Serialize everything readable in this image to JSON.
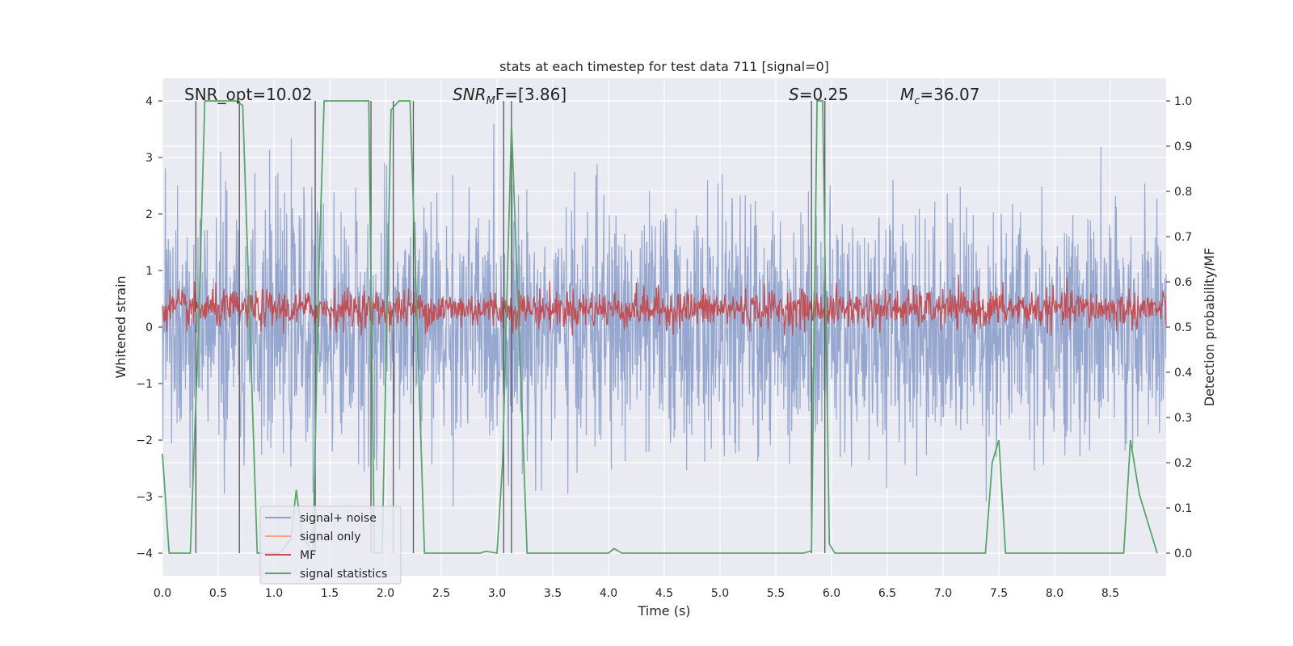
{
  "chart_data": {
    "type": "line",
    "title": "stats at each timestep for test data 711 [signal=0]",
    "xlabel": "Time (s)",
    "ylabel_left": "Whitened strain",
    "ylabel_right": "Detection probability/MF",
    "xlim": [
      0.0,
      9.0
    ],
    "ylim_left": [
      -4.4,
      4.4
    ],
    "ylim_right": [
      -0.05,
      1.05
    ],
    "xticks": [
      "0.0",
      "0.5",
      "1.0",
      "1.5",
      "2.0",
      "2.5",
      "3.0",
      "3.5",
      "4.0",
      "4.5",
      "5.0",
      "5.5",
      "6.0",
      "6.5",
      "7.0",
      "7.5",
      "8.0",
      "8.5"
    ],
    "yticks_left": [
      "4",
      "3",
      "2",
      "1",
      "0",
      "−1",
      "−2",
      "−3",
      "−4"
    ],
    "yticks_right": [
      "1.0",
      "0.9",
      "0.8",
      "0.7",
      "0.6",
      "0.5",
      "0.4",
      "0.3",
      "0.2",
      "0.1",
      "0.0"
    ],
    "annotations": {
      "snr_opt": "SNR_opt=10.02",
      "snr_mf_base": "SNR",
      "snr_mf_sub": "M",
      "snr_mf_tail": "F=[3.86]",
      "s_label": "S",
      "s_value": "=0.25",
      "mc_base": "M",
      "mc_sub": "c",
      "mc_value": "=36.07"
    },
    "legend": [
      {
        "label": "signal+ noise",
        "color": "#8da0cb"
      },
      {
        "label": "signal only",
        "color": "#f4a582"
      },
      {
        "label": "MF",
        "color": "#c44e52"
      },
      {
        "label": "signal statistics",
        "color": "#55a868"
      }
    ],
    "series": [
      {
        "name": "signal+ noise",
        "note": "dense whitened noise, approx range -3.7 to 3.6"
      },
      {
        "name": "MF",
        "note": "noisy band around 0.3 (left axis)"
      },
      {
        "name": "signal statistics",
        "x": [
          0.0,
          0.06,
          0.25,
          0.32,
          0.38,
          0.66,
          0.72,
          0.85,
          1.05,
          1.15,
          1.2,
          1.25,
          1.35,
          1.4,
          1.45,
          1.85,
          1.9,
          1.97,
          2.05,
          2.12,
          2.22,
          2.35,
          2.5,
          2.85,
          2.9,
          3.0,
          3.05,
          3.13,
          3.27,
          3.35,
          4.0,
          4.05,
          4.12,
          4.2,
          5.75,
          5.82,
          5.87,
          5.92,
          5.98,
          6.03,
          6.1,
          7.38,
          7.44,
          7.5,
          7.56,
          8.62,
          8.68,
          8.76,
          8.92
        ],
        "values": [
          0.22,
          0.0,
          0.0,
          0.47,
          1.0,
          1.0,
          0.99,
          0.0,
          0.0,
          0.03,
          0.14,
          0.04,
          0.0,
          0.6,
          1.0,
          1.0,
          0.0,
          0.0,
          0.98,
          1.0,
          1.0,
          0.0,
          0.0,
          0.0,
          0.004,
          0.0,
          0.2,
          0.95,
          0.0,
          0.0,
          0.0,
          0.01,
          0.0,
          0.0,
          0.0,
          0.005,
          1.0,
          1.0,
          0.02,
          0.0,
          0.0,
          0.0,
          0.2,
          0.25,
          0.0,
          0.0,
          0.25,
          0.13,
          0.0
        ]
      },
      {
        "name": "detection markers",
        "x": [
          0.3,
          0.69,
          1.37,
          1.87,
          2.07,
          2.25,
          3.06,
          3.13,
          5.82,
          5.94
        ]
      }
    ]
  }
}
